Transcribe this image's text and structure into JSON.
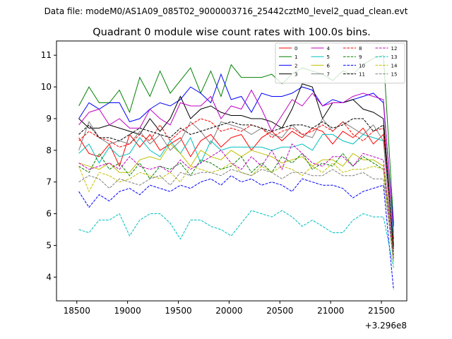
{
  "header": {
    "file_label": "Data file: modeM0/AS1A09_085T02_9000003716_25442cztM0_level2_quad_clean.evt",
    "title": "Quadrant 0 module wise count rates with 100.0s bins."
  },
  "chart_data": {
    "type": "line",
    "title": "Quadrant 0 module wise count rates with 100.0s bins.",
    "xlabel": "",
    "ylabel": "",
    "x_offset_label": "+3.296e8",
    "xlim": [
      18300,
      21750
    ],
    "ylim": [
      3.25,
      11.45
    ],
    "xticks": [
      18500,
      19000,
      19500,
      20000,
      20500,
      21000,
      21500
    ],
    "yticks": [
      4,
      5,
      6,
      7,
      8,
      9,
      10,
      11
    ],
    "grid": false,
    "legend": {
      "position": "top-right",
      "columns": 4
    },
    "x": [
      18520,
      18620,
      18720,
      18820,
      18920,
      19020,
      19120,
      19220,
      19320,
      19420,
      19520,
      19620,
      19720,
      19820,
      19920,
      20020,
      20120,
      20220,
      20320,
      20420,
      20520,
      20620,
      20720,
      20820,
      20920,
      21020,
      21120,
      21220,
      21320,
      21420,
      21520,
      21620
    ],
    "series": [
      {
        "name": "0",
        "color": "#ff0000",
        "dash": "solid",
        "values": [
          8.4,
          7.9,
          7.8,
          8.2,
          7.5,
          8.5,
          8.1,
          8.5,
          8.0,
          8.2,
          8.4,
          7.8,
          8.3,
          8.5,
          8.1,
          8.4,
          8.5,
          8.0,
          8.4,
          8.6,
          8.3,
          8.6,
          8.4,
          8.7,
          8.6,
          8.2,
          8.6,
          8.4,
          8.7,
          8.2,
          8.5,
          5.2
        ]
      },
      {
        "name": "1",
        "color": "#008000",
        "dash": "solid",
        "values": [
          9.4,
          10.0,
          9.5,
          9.5,
          9.9,
          9.2,
          10.3,
          9.7,
          10.5,
          9.8,
          10.2,
          10.6,
          9.8,
          10.5,
          9.7,
          10.7,
          10.3,
          10.3,
          10.3,
          10.4,
          10.1,
          10.4,
          10.6,
          10.5,
          10.4,
          10.2,
          10.5,
          10.4,
          10.7,
          10.9,
          11.0,
          5.7
        ]
      },
      {
        "name": "2",
        "color": "#0000ff",
        "dash": "solid",
        "values": [
          9.0,
          9.5,
          9.3,
          9.5,
          9.5,
          8.9,
          9.0,
          9.3,
          9.5,
          9.4,
          9.6,
          10.0,
          9.8,
          9.5,
          10.4,
          9.6,
          9.7,
          9.2,
          9.8,
          9.7,
          9.7,
          9.8,
          10.0,
          9.9,
          9.4,
          9.6,
          9.5,
          9.6,
          9.7,
          9.8,
          9.5,
          5.6
        ]
      },
      {
        "name": "3",
        "color": "#000000",
        "dash": "solid",
        "values": [
          9.0,
          8.7,
          8.7,
          8.8,
          8.7,
          8.6,
          8.5,
          9.0,
          8.6,
          9.0,
          9.7,
          9.0,
          9.3,
          9.4,
          9.2,
          9.1,
          9.1,
          9.0,
          9.0,
          8.9,
          8.7,
          9.3,
          10.1,
          10.0,
          9.0,
          9.5,
          9.5,
          9.6,
          9.3,
          9.2,
          9.0,
          5.0
        ]
      },
      {
        "name": "4",
        "color": "#bf00bf",
        "dash": "solid",
        "values": [
          8.8,
          9.2,
          9.3,
          8.8,
          9.0,
          8.7,
          8.7,
          9.3,
          9.0,
          8.8,
          9.5,
          9.4,
          9.4,
          9.7,
          9.0,
          9.4,
          9.3,
          9.9,
          9.3,
          8.6,
          9.1,
          9.6,
          9.4,
          9.8,
          9.4,
          9.5,
          9.5,
          9.7,
          9.8,
          9.7,
          9.6,
          5.4
        ]
      },
      {
        "name": "5",
        "color": "#00bfbf",
        "dash": "solid",
        "values": [
          7.9,
          8.2,
          7.6,
          8.1,
          7.8,
          7.9,
          8.4,
          8.0,
          7.8,
          8.3,
          7.9,
          8.4,
          7.6,
          8.3,
          8.0,
          8.1,
          8.1,
          8.1,
          8.1,
          8.0,
          8.1,
          8.1,
          8.2,
          8.0,
          8.5,
          8.5,
          8.3,
          8.2,
          8.5,
          8.4,
          8.3,
          5.3
        ]
      },
      {
        "name": "6",
        "color": "#bfbf00",
        "dash": "solid",
        "values": [
          7.6,
          7.5,
          7.4,
          7.6,
          7.3,
          7.3,
          7.7,
          7.8,
          7.7,
          8.2,
          7.9,
          7.5,
          8.0,
          7.8,
          7.7,
          8.0,
          7.8,
          8.0,
          7.9,
          7.8,
          7.6,
          7.7,
          7.8,
          7.5,
          7.7,
          7.7,
          7.5,
          7.9,
          7.7,
          7.7,
          7.5,
          4.9
        ]
      },
      {
        "name": "7",
        "color": "#808080",
        "dash": "solid",
        "values": [
          8.0,
          8.9,
          8.4,
          8.2,
          8.3,
          8.2,
          8.6,
          8.2,
          8.5,
          8.0,
          8.3,
          8.9,
          8.6,
          8.2,
          8.9,
          8.8,
          8.7,
          8.5,
          8.7,
          8.5,
          8.4,
          8.8,
          8.5,
          8.4,
          9.0,
          8.6,
          8.9,
          8.7,
          8.5,
          8.8,
          8.3,
          4.6
        ]
      },
      {
        "name": "8",
        "color": "#ff0000",
        "dash": "dashed",
        "values": [
          8.3,
          8.6,
          8.4,
          8.3,
          8.1,
          8.2,
          8.5,
          8.3,
          8.8,
          8.3,
          8.6,
          8.8,
          9.0,
          8.9,
          8.6,
          8.7,
          8.6,
          8.8,
          8.7,
          8.4,
          8.6,
          8.7,
          8.5,
          8.6,
          8.8,
          8.6,
          8.9,
          8.5,
          8.3,
          8.6,
          8.7,
          4.8
        ]
      },
      {
        "name": "9",
        "color": "#008000",
        "dash": "dashed",
        "values": [
          7.5,
          7.3,
          7.9,
          7.4,
          7.6,
          7.2,
          7.6,
          7.1,
          7.5,
          7.4,
          7.6,
          7.2,
          7.7,
          7.6,
          7.4,
          7.5,
          7.8,
          7.3,
          7.6,
          7.3,
          7.8,
          7.6,
          7.9,
          7.4,
          7.6,
          7.5,
          7.9,
          7.5,
          7.8,
          7.6,
          7.4,
          4.7
        ]
      },
      {
        "name": "10",
        "color": "#0000ff",
        "dash": "dashed",
        "values": [
          6.7,
          6.2,
          6.6,
          6.4,
          6.7,
          6.8,
          6.6,
          6.9,
          6.8,
          6.7,
          6.9,
          6.8,
          7.0,
          7.1,
          6.9,
          7.2,
          7.0,
          7.1,
          6.9,
          7.0,
          6.9,
          6.7,
          7.1,
          7.0,
          6.9,
          6.9,
          6.8,
          6.5,
          6.7,
          6.8,
          6.9,
          3.6
        ]
      },
      {
        "name": "11",
        "color": "#000000",
        "dash": "dashed",
        "values": [
          8.5,
          8.8,
          8.4,
          8.4,
          8.3,
          8.5,
          8.7,
          8.6,
          8.5,
          8.4,
          8.7,
          8.5,
          8.6,
          8.7,
          8.8,
          8.9,
          8.8,
          8.8,
          8.7,
          8.6,
          8.7,
          8.8,
          8.8,
          8.7,
          8.9,
          8.7,
          8.8,
          9.0,
          9.0,
          8.6,
          8.8,
          4.9
        ]
      },
      {
        "name": "12",
        "color": "#bf00bf",
        "dash": "dashed",
        "values": [
          7.6,
          7.4,
          7.5,
          7.6,
          7.4,
          7.8,
          7.5,
          7.4,
          7.5,
          7.3,
          7.7,
          7.4,
          7.6,
          7.8,
          8.0,
          7.6,
          7.4,
          7.8,
          7.5,
          8.0,
          7.4,
          8.2,
          7.9,
          7.6,
          7.5,
          7.8,
          7.8,
          7.5,
          7.9,
          7.8,
          7.7,
          4.5
        ]
      },
      {
        "name": "13",
        "color": "#00bfbf",
        "dash": "dashed",
        "values": [
          5.5,
          5.4,
          5.8,
          5.8,
          6.0,
          5.3,
          5.8,
          6.0,
          6.0,
          5.7,
          5.2,
          5.8,
          5.8,
          5.6,
          5.5,
          5.3,
          5.7,
          6.1,
          6.0,
          5.9,
          6.1,
          5.9,
          5.6,
          5.8,
          5.6,
          5.4,
          5.4,
          5.8,
          6.0,
          5.9,
          5.9,
          4.3
        ]
      },
      {
        "name": "14",
        "color": "#bfbf00",
        "dash": "dashed",
        "values": [
          7.5,
          6.7,
          7.3,
          7.2,
          7.0,
          7.1,
          7.3,
          7.2,
          7.1,
          7.3,
          7.0,
          7.5,
          7.4,
          7.3,
          7.4,
          7.6,
          7.3,
          7.2,
          7.5,
          7.3,
          7.5,
          7.4,
          7.2,
          7.5,
          7.3,
          7.6,
          7.3,
          7.4,
          7.4,
          7.5,
          7.4,
          4.4
        ]
      },
      {
        "name": "15",
        "color": "#808080",
        "dash": "dashed",
        "values": [
          7.0,
          7.2,
          7.1,
          6.8,
          7.1,
          7.0,
          6.9,
          7.1,
          7.2,
          6.9,
          7.3,
          7.2,
          7.3,
          7.3,
          7.2,
          7.4,
          7.3,
          7.2,
          7.4,
          7.3,
          7.1,
          7.3,
          7.3,
          7.2,
          7.2,
          7.4,
          7.2,
          7.2,
          7.3,
          7.1,
          7.1,
          4.5
        ]
      }
    ]
  }
}
